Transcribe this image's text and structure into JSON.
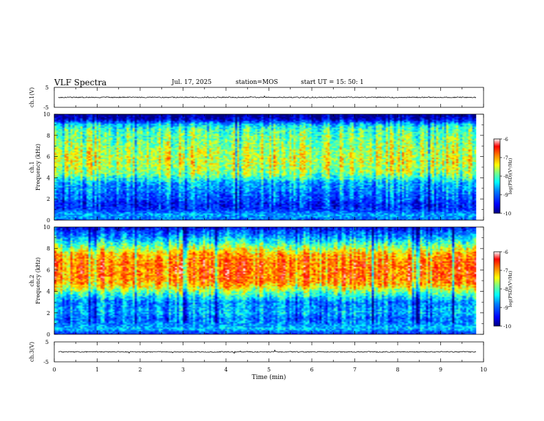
{
  "header": {
    "title": "VLF Spectra",
    "date": "Jul. 17, 2025",
    "station": "station=MOS",
    "start": "start UT =  15: 50: 1"
  },
  "chart_data": [
    {
      "type": "line",
      "panel": "ch1_waveform",
      "ylabel": "ch.1(V)",
      "ylim": [
        -5,
        5
      ],
      "yticks": [
        "5",
        "-5"
      ],
      "trace_level": 0
    },
    {
      "type": "heatmap",
      "panel": "ch1_spectrogram",
      "ylabel": "ch.1 Frequency (kHz)",
      "ylim": [
        0,
        10
      ],
      "yticks": [
        "0",
        "2",
        "4",
        "6",
        "8",
        "10"
      ],
      "xlim": [
        0,
        10
      ],
      "colorbar": {
        "label": "log(PSD)(V²/Hz)",
        "range": [
          -10,
          -6
        ],
        "ticks": [
          "-6",
          "-7",
          "-8",
          "-9",
          "-10"
        ]
      },
      "band_profile_khz": [
        0,
        0.5,
        1,
        1.5,
        2,
        2.5,
        3,
        3.5,
        4,
        4.5,
        5,
        5.5,
        6,
        6.5,
        7,
        7.5,
        8,
        8.5,
        9,
        9.5,
        10
      ],
      "band_psd": [
        -9.0,
        -8.6,
        -9.2,
        -9.3,
        -9.0,
        -8.9,
        -8.7,
        -8.6,
        -8.1,
        -7.7,
        -7.6,
        -7.5,
        -7.5,
        -7.6,
        -7.7,
        -7.8,
        -7.9,
        -8.0,
        -8.4,
        -9.6,
        -10.0
      ]
    },
    {
      "type": "heatmap",
      "panel": "ch2_spectrogram",
      "ylabel": "ch.2 Frequency (kHz)",
      "ylim": [
        0,
        10
      ],
      "yticks": [
        "0",
        "2",
        "4",
        "6",
        "8",
        "10"
      ],
      "xlim": [
        0,
        10
      ],
      "colorbar": {
        "label": "log(PSD)(V²/Hz)",
        "range": [
          -10,
          -6
        ],
        "ticks": [
          "-6",
          "-7",
          "-8",
          "-9",
          "-10"
        ]
      },
      "band_profile_khz": [
        0,
        0.5,
        1,
        1.5,
        2,
        2.5,
        3,
        3.5,
        4,
        4.5,
        5,
        5.5,
        6,
        6.5,
        7,
        7.5,
        8,
        8.5,
        9,
        9.5,
        10
      ],
      "band_psd": [
        -9.3,
        -8.5,
        -8.8,
        -8.9,
        -8.6,
        -8.7,
        -8.8,
        -8.3,
        -7.8,
        -7.2,
        -6.9,
        -6.8,
        -6.8,
        -6.8,
        -6.9,
        -7.1,
        -7.6,
        -8.1,
        -8.6,
        -9.0,
        -9.5
      ]
    },
    {
      "type": "line",
      "panel": "ch3_waveform",
      "ylabel": "ch.3(V)",
      "ylim": [
        -5,
        5
      ],
      "yticks": [
        "5",
        "-5"
      ],
      "trace_level": 0
    }
  ],
  "xaxis": {
    "label": "Time (min)",
    "range": [
      0,
      10
    ],
    "ticks": [
      "0",
      "1",
      "2",
      "3",
      "4",
      "5",
      "6",
      "7",
      "8",
      "9",
      "10"
    ]
  },
  "colors": {
    "cmap": [
      "#00007f",
      "#0000ff",
      "#0080ff",
      "#00ffff",
      "#80ff80",
      "#ffff00",
      "#ff8000",
      "#ff0000",
      "#ffffff"
    ]
  }
}
